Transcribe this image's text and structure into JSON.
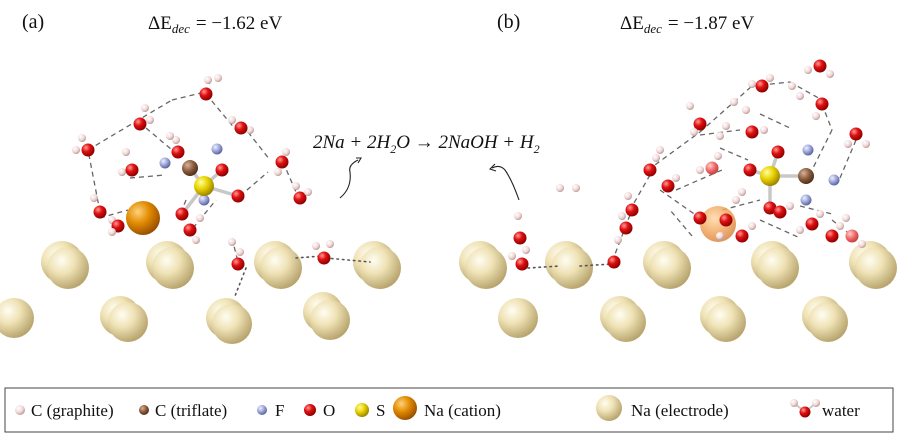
{
  "panels": [
    {
      "label": "(a)",
      "energy_symbol": "ΔE",
      "energy_sub": "dec",
      "energy_value": "= −1.62 eV"
    },
    {
      "label": "(b)",
      "energy_symbol": "ΔE",
      "energy_sub": "dec",
      "energy_value": "= −1.87 eV"
    }
  ],
  "reaction": {
    "left": "2Na + 2H",
    "left_sub": "2",
    "left_tail": "O → 2NaOH + H",
    "right_sub": "2"
  },
  "legend": [
    {
      "label": "C (graphite)",
      "icon": "graphite-carbon-icon",
      "color": "#e9cfcf"
    },
    {
      "label": "C (triflate)",
      "icon": "triflate-carbon-icon",
      "color": "#8b5a3c"
    },
    {
      "label": "F",
      "icon": "fluorine-icon",
      "color": "#9aa3d6"
    },
    {
      "label": "O",
      "icon": "oxygen-icon",
      "color": "#e01010"
    },
    {
      "label": "S",
      "icon": "sulfur-icon",
      "color": "#e8d000"
    },
    {
      "label": "Na (cation)",
      "icon": "sodium-cation-icon",
      "color": "#e08a00"
    },
    {
      "label": "Na (electrode)",
      "icon": "sodium-electrode-icon",
      "color": "#efe2b5"
    },
    {
      "label": "water",
      "icon": "water-icon",
      "color": "#e01010"
    }
  ]
}
